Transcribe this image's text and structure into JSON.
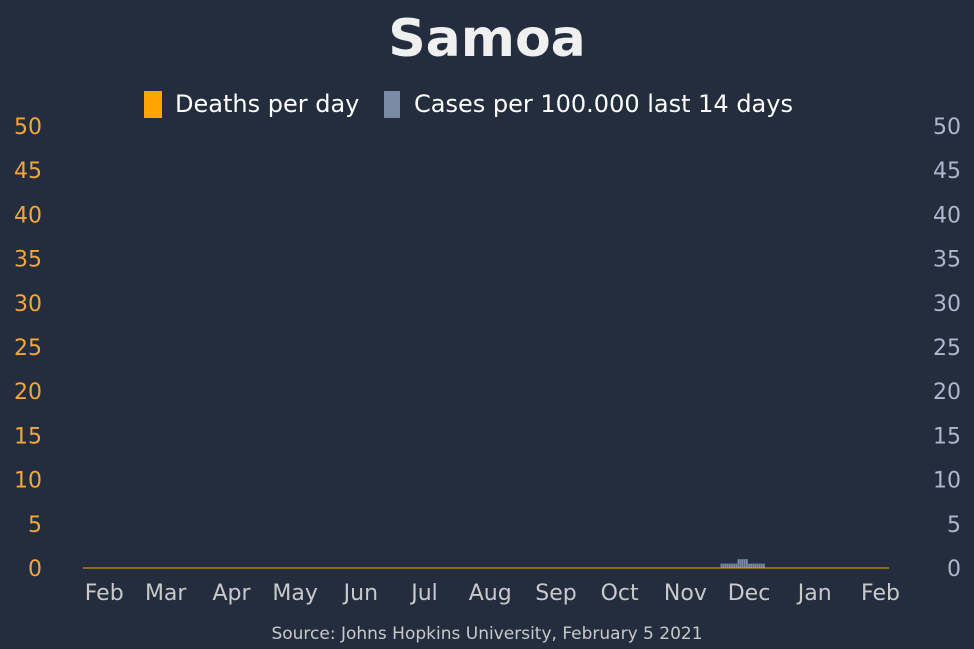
{
  "title": "Samoa",
  "source": "Source: Johns Hopkins University, February 5 2021",
  "colors": {
    "background": "#232d3e",
    "deaths": "#ffa500",
    "cases": "#7b8aa6",
    "left_axis": "#f4a637",
    "right_axis": "#aeb8cc",
    "x_axis_text": "#c9c9c9"
  },
  "legend": [
    {
      "label": "Deaths per day",
      "color": "#ffa500"
    },
    {
      "label": "Cases per 100.000 last 14 days",
      "color": "#7b8aa6"
    }
  ],
  "chart_data": {
    "type": "bar",
    "title": "Samoa",
    "x_tick_labels": [
      "Feb",
      "Mar",
      "Apr",
      "May",
      "Jun",
      "Jul",
      "Aug",
      "Sep",
      "Oct",
      "Nov",
      "Dec",
      "Jan",
      "Feb"
    ],
    "x_tick_dates": [
      "2020-02-01",
      "2020-03-01",
      "2020-04-01",
      "2020-05-01",
      "2020-06-01",
      "2020-07-01",
      "2020-08-01",
      "2020-09-01",
      "2020-10-01",
      "2020-11-01",
      "2020-12-01",
      "2021-01-01",
      "2021-02-01"
    ],
    "xlim": [
      "2020-01-22",
      "2021-02-05"
    ],
    "y_left": {
      "label": "",
      "lim": [
        0,
        50
      ],
      "ticks": [
        0,
        5,
        10,
        15,
        20,
        25,
        30,
        35,
        40,
        45,
        50
      ]
    },
    "y_right": {
      "label": "",
      "lim": [
        0,
        50
      ],
      "ticks": [
        0,
        5,
        10,
        15,
        20,
        25,
        30,
        35,
        40,
        45,
        50
      ]
    },
    "series": [
      {
        "name": "Deaths per day",
        "axis": "left",
        "points": []
      },
      {
        "name": "Cases per 100.000 last 14 days",
        "axis": "right",
        "points": [
          {
            "date": "2020-11-18",
            "value": 0.5
          },
          {
            "date": "2020-11-19",
            "value": 0.5
          },
          {
            "date": "2020-11-20",
            "value": 0.5
          },
          {
            "date": "2020-11-21",
            "value": 0.5
          },
          {
            "date": "2020-11-22",
            "value": 0.5
          },
          {
            "date": "2020-11-23",
            "value": 0.5
          },
          {
            "date": "2020-11-24",
            "value": 0.5
          },
          {
            "date": "2020-11-25",
            "value": 0.5
          },
          {
            "date": "2020-11-26",
            "value": 1.0
          },
          {
            "date": "2020-11-27",
            "value": 1.0
          },
          {
            "date": "2020-11-28",
            "value": 1.0
          },
          {
            "date": "2020-11-29",
            "value": 1.0
          },
          {
            "date": "2020-11-30",
            "value": 1.0
          },
          {
            "date": "2020-12-01",
            "value": 0.5
          },
          {
            "date": "2020-12-02",
            "value": 0.5
          },
          {
            "date": "2020-12-03",
            "value": 0.5
          },
          {
            "date": "2020-12-04",
            "value": 0.5
          },
          {
            "date": "2020-12-05",
            "value": 0.5
          },
          {
            "date": "2020-12-06",
            "value": 0.5
          },
          {
            "date": "2020-12-07",
            "value": 0.5
          },
          {
            "date": "2020-12-08",
            "value": 0.5
          }
        ]
      }
    ],
    "grid": false,
    "legend_position": "top-center"
  }
}
